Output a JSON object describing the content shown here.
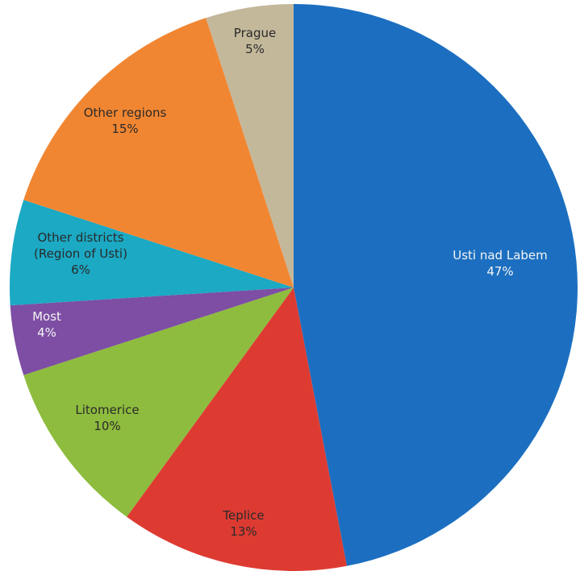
{
  "chart_data": {
    "type": "pie",
    "start": "top, clockwise",
    "slices": [
      {
        "label": "Usti nad Labem",
        "label_lines": [
          "Usti nad Labem"
        ],
        "value": 47,
        "value_label": "47%",
        "color": "#1c6fc0",
        "text": "light"
      },
      {
        "label": "Teplice",
        "label_lines": [
          "Teplice"
        ],
        "value": 13,
        "value_label": "13%",
        "color": "#dd3b32",
        "text": "dark"
      },
      {
        "label": "Litomerice",
        "label_lines": [
          "Litomerice"
        ],
        "value": 10,
        "value_label": "10%",
        "color": "#8ebc3e",
        "text": "dark"
      },
      {
        "label": "Most",
        "label_lines": [
          "Most"
        ],
        "value": 4,
        "value_label": "4%",
        "color": "#7d4ea3",
        "text": "light"
      },
      {
        "label": "Other districts (Region of Usti)",
        "label_lines": [
          "Other districts",
          "(Region of Usti)"
        ],
        "value": 6,
        "value_label": "6%",
        "color": "#1ba9c4",
        "text": "dark"
      },
      {
        "label": "Other regions",
        "label_lines": [
          "Other regions"
        ],
        "value": 15,
        "value_label": "15%",
        "color": "#f18632",
        "text": "dark"
      },
      {
        "label": "Prague",
        "label_lines": [
          "Prague"
        ],
        "value": 5,
        "value_label": "5%",
        "color": "#c4b89b",
        "text": "dark"
      }
    ]
  }
}
